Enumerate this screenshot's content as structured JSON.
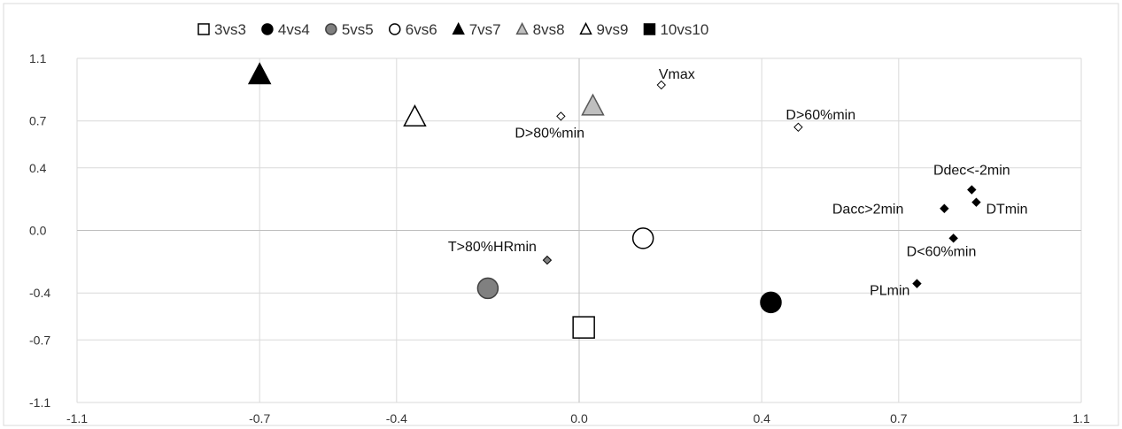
{
  "chart_data": {
    "type": "scatter",
    "xlim": [
      -1.1,
      1.1
    ],
    "ylim": [
      -1.1,
      1.1
    ],
    "x_ticks": [
      {
        "value": -1.1,
        "label": "-1.1"
      },
      {
        "value": -0.7,
        "label": "-0.7"
      },
      {
        "value": -0.4,
        "label": "-0.4"
      },
      {
        "value": 0.0,
        "label": "0.0"
      },
      {
        "value": 0.4,
        "label": "0.4"
      },
      {
        "value": 0.7,
        "label": "0.7"
      },
      {
        "value": 1.1,
        "label": "1.1"
      }
    ],
    "y_ticks": [
      {
        "value": 1.1,
        "label": "1.1"
      },
      {
        "value": 0.7,
        "label": "0.7"
      },
      {
        "value": 0.4,
        "label": "0.4"
      },
      {
        "value": 0.0,
        "label": "0.0"
      },
      {
        "value": -0.4,
        "label": "-0.4"
      },
      {
        "value": -0.7,
        "label": "-0.7"
      },
      {
        "value": -1.1,
        "label": "-1.1"
      }
    ],
    "grid": true,
    "legend_position": "top",
    "series": [
      {
        "name": "3vs3",
        "marker": "square",
        "fill": "#ffffff",
        "stroke": "#000000",
        "points": [
          {
            "x": 0.01,
            "y": -0.62
          }
        ]
      },
      {
        "name": "4vs4",
        "marker": "circle",
        "fill": "#000000",
        "stroke": "#000000",
        "points": [
          {
            "x": 0.42,
            "y": -0.46
          }
        ]
      },
      {
        "name": "5vs5",
        "marker": "circle",
        "fill": "#808080",
        "stroke": "#404040",
        "points": [
          {
            "x": -0.2,
            "y": -0.37
          }
        ]
      },
      {
        "name": "6vs6",
        "marker": "circle",
        "fill": "#ffffff",
        "stroke": "#000000",
        "points": [
          {
            "x": 0.14,
            "y": -0.05
          }
        ]
      },
      {
        "name": "7vs7",
        "marker": "triangle",
        "fill": "#000000",
        "stroke": "#000000",
        "points": [
          {
            "x": -0.7,
            "y": 1.0
          }
        ]
      },
      {
        "name": "8vs8",
        "marker": "triangle",
        "fill": "#bfbfbf",
        "stroke": "#595959",
        "points": [
          {
            "x": 0.03,
            "y": 0.8
          }
        ]
      },
      {
        "name": "9vs9",
        "marker": "triangle",
        "fill": "#ffffff",
        "stroke": "#000000",
        "points": [
          {
            "x": -0.36,
            "y": 0.73
          }
        ]
      },
      {
        "name": "10vs10",
        "marker": "square",
        "fill": "#000000",
        "stroke": "#000000",
        "points": []
      }
    ],
    "variables": [
      {
        "label": "Vmax",
        "x": 0.18,
        "y": 0.93,
        "fill": "#ffffff",
        "anchor": "end",
        "dx": 38,
        "dy": -7
      },
      {
        "label": "D>80%min",
        "x": -0.04,
        "y": 0.73,
        "fill": "#ffffff",
        "anchor": "start",
        "dx": -52,
        "dy": 24
      },
      {
        "label": "D>60%min",
        "x": 0.48,
        "y": 0.66,
        "fill": "#ffffff",
        "anchor": "start",
        "dx": -14,
        "dy": -9
      },
      {
        "label": "T>80%HRmin",
        "x": -0.07,
        "y": -0.19,
        "fill": "#808080",
        "anchor": "end",
        "dx": -12,
        "dy": -10
      },
      {
        "label": "Ddec<-2min",
        "x": 0.86,
        "y": 0.26,
        "fill": "#000000",
        "anchor": "middle",
        "dx": 0,
        "dy": -17
      },
      {
        "label": "Dacc>2min",
        "x": 0.8,
        "y": 0.14,
        "fill": "#000000",
        "anchor": "end",
        "dx": -46,
        "dy": 6
      },
      {
        "label": "DTmin",
        "x": 0.87,
        "y": 0.18,
        "fill": "#000000",
        "anchor": "start",
        "dx": 11,
        "dy": 13
      },
      {
        "label": "D<60%min",
        "x": 0.82,
        "y": -0.05,
        "fill": "#000000",
        "anchor": "start",
        "dx": -53,
        "dy": 20
      },
      {
        "label": "PLmin",
        "x": 0.74,
        "y": -0.34,
        "fill": "#000000",
        "anchor": "end",
        "dx": -8,
        "dy": 13
      }
    ]
  }
}
